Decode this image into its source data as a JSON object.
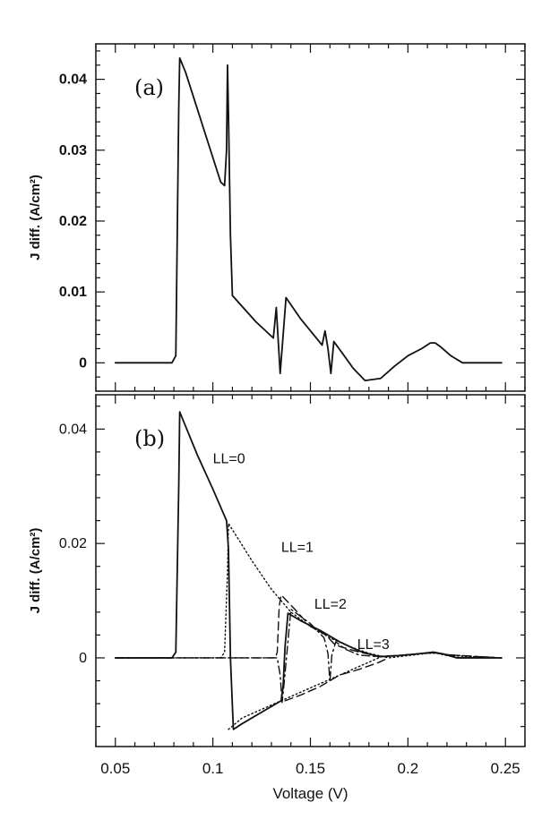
{
  "chart_data": [
    {
      "type": "line",
      "panel_label": "(a)",
      "xlim": [
        0.04,
        0.26
      ],
      "ylim": [
        -0.004,
        0.045
      ],
      "ylabel": "J diff. (A/cm²)",
      "y_ticks": [
        0,
        0.01,
        0.02,
        0.03,
        0.04
      ],
      "y_tick_labels": [
        "0",
        "0.01",
        "0.02",
        "0.03",
        "0.04"
      ],
      "series": [
        {
          "style": "solid",
          "x": [
            0.05,
            0.079,
            0.081,
            0.0825,
            0.083,
            0.086,
            0.104,
            0.106,
            0.107,
            0.1075,
            0.108,
            0.109,
            0.11,
            0.122,
            0.131,
            0.1325,
            0.1345,
            0.1375,
            0.145,
            0.156,
            0.1575,
            0.159,
            0.1605,
            0.162,
            0.166,
            0.172,
            0.178,
            0.186,
            0.193,
            0.2,
            0.207,
            0.2115,
            0.214,
            0.217,
            0.222,
            0.228,
            0.248
          ],
          "y": [
            0,
            0,
            0.001,
            0.036,
            0.043,
            0.041,
            0.0255,
            0.025,
            0.03,
            0.042,
            0.035,
            0.018,
            0.0095,
            0.0058,
            0.0035,
            0.0078,
            -0.0015,
            0.0092,
            0.0062,
            0.0025,
            0.0045,
            0.002,
            -0.0015,
            0.003,
            0.0015,
            -0.0008,
            -0.0025,
            -0.0022,
            -0.0005,
            0.001,
            0.002,
            0.0028,
            0.0028,
            0.0022,
            0.001,
            0,
            0
          ]
        }
      ]
    },
    {
      "type": "line",
      "panel_label": "(b)",
      "xlim": [
        0.04,
        0.26
      ],
      "ylim": [
        -0.0155,
        0.046
      ],
      "xlabel": "Voltage (V)",
      "ylabel": "J diff. (A/cm²)",
      "x_ticks": [
        0.05,
        0.1,
        0.15,
        0.2,
        0.25
      ],
      "x_tick_labels": [
        "0.05",
        "0.1",
        "0.15",
        "0.2",
        "0.25"
      ],
      "y_ticks": [
        0,
        0.02,
        0.04
      ],
      "y_tick_labels": [
        "0",
        "0.02",
        "0.04"
      ],
      "annotations": [
        {
          "text": "LL=0",
          "x": 0.1,
          "y": 0.035
        },
        {
          "text": "LL=1",
          "x": 0.135,
          "y": 0.0195
        },
        {
          "text": "LL=2",
          "x": 0.152,
          "y": 0.0095
        },
        {
          "text": "LL=3",
          "x": 0.174,
          "y": 0.0025
        }
      ],
      "series": [
        {
          "style": "solid",
          "x": [
            0.05,
            0.079,
            0.081,
            0.0825,
            0.083,
            0.092,
            0.1,
            0.107,
            0.108,
            0.109,
            0.1105,
            0.115,
            0.125,
            0.135,
            0.136,
            0.137,
            0.1385,
            0.145,
            0.155,
            0.165,
            0.175,
            0.185,
            0.195,
            0.205,
            0.213,
            0.218,
            0.225,
            0.248
          ],
          "y": [
            0,
            0,
            0.001,
            0.03,
            0.043,
            0.0355,
            0.0295,
            0.024,
            0.019,
            0,
            -0.0125,
            -0.0115,
            -0.0095,
            -0.0075,
            -0.005,
            0.002,
            0.0078,
            0.0065,
            0.0048,
            0.0028,
            0.0012,
            0.0002,
            0.0004,
            0.0007,
            0.001,
            0.0007,
            0,
            0
          ]
        },
        {
          "style": "dotted",
          "x": [
            0.05,
            0.104,
            0.106,
            0.1075,
            0.108,
            0.12,
            0.13,
            0.135,
            0.14,
            0.15,
            0.16,
            0.17,
            0.18,
            0.19,
            0.2,
            0.21,
            0.215,
            0.22,
            0.248
          ],
          "y": [
            0,
            0,
            0.001,
            0.015,
            0.0235,
            0.017,
            0.012,
            0.01,
            0.008,
            0.0055,
            0.0035,
            0.002,
            0.0008,
            0,
            0.0004,
            0.0008,
            0.0008,
            0.0004,
            0
          ]
        },
        {
          "style": "dotted",
          "x": [
            0.108,
            0.115,
            0.125,
            0.135,
            0.145,
            0.155,
            0.165,
            0.175,
            0.185
          ],
          "y": [
            -0.0125,
            -0.0105,
            -0.009,
            -0.0075,
            -0.006,
            -0.0045,
            -0.003,
            -0.0015,
            0
          ]
        },
        {
          "style": "dashed",
          "x": [
            0.05,
            0.132,
            0.133,
            0.134,
            0.135,
            0.142,
            0.15,
            0.158,
            0.162,
            0.165,
            0.175,
            0.185,
            0.195,
            0.205,
            0.213,
            0.222,
            0.248
          ],
          "y": [
            0,
            0,
            0.001,
            0.009,
            0.011,
            0.0085,
            0.0055,
            0.004,
            0.0025,
            0.002,
            0.001,
            0.0003,
            0.0004,
            0.0007,
            0.0009,
            0.0005,
            0
          ]
        },
        {
          "style": "dashed",
          "x": [
            0.137,
            0.145,
            0.155,
            0.16,
            0.165,
            0.175,
            0.185,
            0.19
          ],
          "y": [
            -0.0075,
            -0.0065,
            -0.005,
            -0.004,
            -0.003,
            -0.002,
            -0.0008,
            0
          ]
        },
        {
          "style": "dashdot",
          "x": [
            0.05,
            0.133,
            0.1345,
            0.1355,
            0.1365,
            0.14,
            0.15,
            0.157,
            0.159,
            0.16,
            0.161,
            0.163,
            0.168,
            0.175,
            0.185,
            0.195,
            0.205,
            0.213,
            0.222,
            0.248
          ],
          "y": [
            0,
            0,
            -0.003,
            -0.0078,
            -0.0045,
            0.0085,
            0.006,
            0.0035,
            0.0008,
            -0.0042,
            0.0005,
            0.0028,
            0.0015,
            0.0005,
            0.0002,
            0.0004,
            0.0007,
            0.0009,
            0.0005,
            0
          ]
        }
      ]
    }
  ]
}
